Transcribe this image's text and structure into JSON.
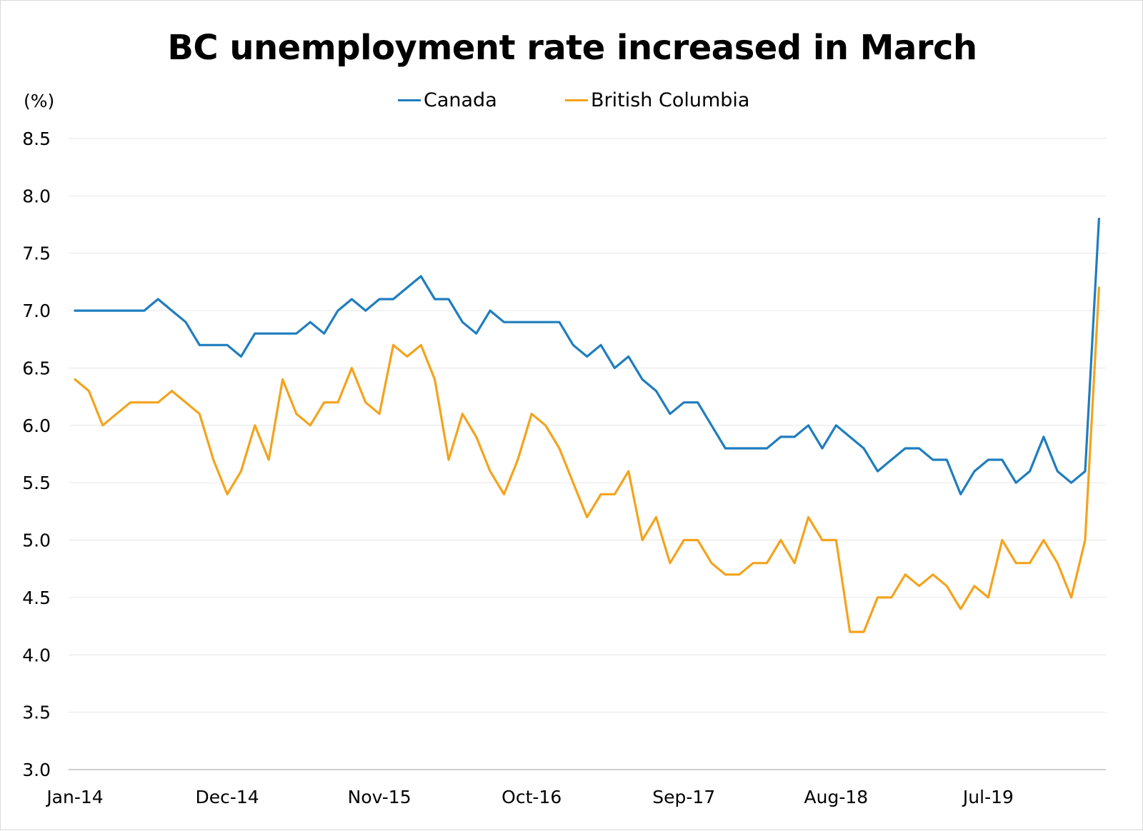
{
  "chart_data": {
    "type": "line",
    "title": "BC unemployment rate increased in March",
    "ylabel": "(%)",
    "xlabel": "",
    "ylim": [
      3.0,
      8.5
    ],
    "yticks": [
      "3.0",
      "3.5",
      "4.0",
      "4.5",
      "5.0",
      "5.5",
      "6.0",
      "6.5",
      "7.0",
      "7.5",
      "8.0",
      "8.5"
    ],
    "x_tick_labels": [
      "Jan-14",
      "Dec-14",
      "Nov-15",
      "Oct-16",
      "Sep-17",
      "Aug-18",
      "Jul-19"
    ],
    "x_tick_index": [
      0,
      11,
      22,
      33,
      44,
      55,
      66
    ],
    "x_start": "Jan-14",
    "x_end": "Mar-20",
    "grid": "horizontal",
    "legend_position": "top",
    "series": [
      {
        "name": "Canada",
        "color": "#1f7dbf",
        "values": [
          7.0,
          7.0,
          7.0,
          7.0,
          7.0,
          7.0,
          7.1,
          7.0,
          6.9,
          6.7,
          6.7,
          6.7,
          6.6,
          6.8,
          6.8,
          6.8,
          6.8,
          6.9,
          6.8,
          7.0,
          7.1,
          7.0,
          7.1,
          7.1,
          7.2,
          7.3,
          7.1,
          7.1,
          6.9,
          6.8,
          7.0,
          6.9,
          6.9,
          6.9,
          6.9,
          6.9,
          6.7,
          6.6,
          6.7,
          6.5,
          6.6,
          6.4,
          6.3,
          6.1,
          6.2,
          6.2,
          6.0,
          5.8,
          5.8,
          5.8,
          5.8,
          5.9,
          5.9,
          6.0,
          5.8,
          6.0,
          5.9,
          5.8,
          5.6,
          5.7,
          5.8,
          5.8,
          5.7,
          5.7,
          5.4,
          5.6,
          5.7,
          5.7,
          5.5,
          5.6,
          5.9,
          5.6,
          5.5,
          5.6,
          7.8
        ]
      },
      {
        "name": "British Columbia",
        "color": "#f4a31c",
        "values": [
          6.4,
          6.3,
          6.0,
          6.1,
          6.2,
          6.2,
          6.2,
          6.3,
          6.2,
          6.1,
          5.7,
          5.4,
          5.6,
          6.0,
          5.7,
          6.4,
          6.1,
          6.0,
          6.2,
          6.2,
          6.5,
          6.2,
          6.1,
          6.7,
          6.6,
          6.7,
          6.4,
          5.7,
          6.1,
          5.9,
          5.6,
          5.4,
          5.7,
          6.1,
          6.0,
          5.8,
          5.5,
          5.2,
          5.4,
          5.4,
          5.6,
          5.0,
          5.2,
          4.8,
          5.0,
          5.0,
          4.8,
          4.7,
          4.7,
          4.8,
          4.8,
          5.0,
          4.8,
          5.2,
          5.0,
          5.0,
          4.2,
          4.2,
          4.5,
          4.5,
          4.7,
          4.6,
          4.7,
          4.6,
          4.4,
          4.6,
          4.5,
          5.0,
          4.8,
          4.8,
          5.0,
          4.8,
          4.5,
          5.0,
          7.2
        ]
      }
    ]
  }
}
